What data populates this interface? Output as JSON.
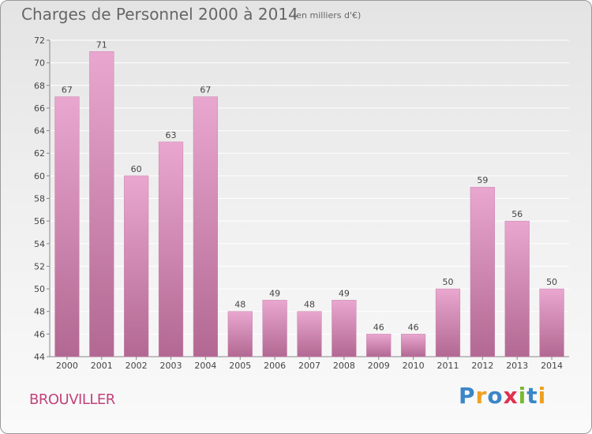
{
  "title": "Charges de Personnel 2000 à 2014",
  "unit_note": "(en milliers d'€)",
  "commune": "BROUVILLER",
  "logo": {
    "text": "Proxiti",
    "letters": [
      {
        "ch": "P",
        "color": "#3a86c8"
      },
      {
        "ch": "r",
        "color": "#f0a020"
      },
      {
        "ch": "o",
        "color": "#3a86c8"
      },
      {
        "ch": "x",
        "color": "#e03050"
      },
      {
        "ch": "i",
        "color": "#7ab830"
      },
      {
        "ch": "t",
        "color": "#3a86c8"
      },
      {
        "ch": "i",
        "color": "#f0a020"
      }
    ]
  },
  "colors": {
    "bar_top": "#e9a7cf",
    "bar_bottom": "#b26892",
    "bar_edge": "#c982ac",
    "grid": "#ffffff"
  },
  "chart_data": {
    "type": "bar",
    "categories": [
      "2000",
      "2001",
      "2002",
      "2003",
      "2004",
      "2005",
      "2006",
      "2007",
      "2008",
      "2009",
      "2010",
      "2011",
      "2012",
      "2013",
      "2014"
    ],
    "values": [
      67,
      71,
      60,
      63,
      67,
      48,
      49,
      48,
      49,
      46,
      46,
      50,
      59,
      56,
      50
    ],
    "ylim": [
      44,
      72
    ],
    "yticks": [
      44,
      46,
      48,
      50,
      52,
      54,
      56,
      58,
      60,
      62,
      64,
      66,
      68,
      70,
      72
    ],
    "grid": true,
    "xlabel": "",
    "ylabel": ""
  }
}
